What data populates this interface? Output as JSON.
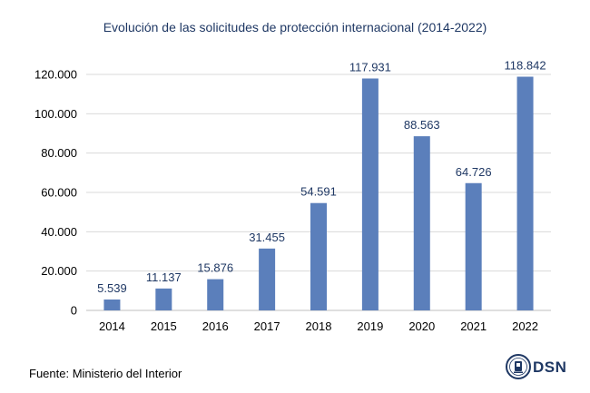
{
  "chart_data": {
    "type": "bar",
    "title": "Evolución de las solicitudes de protección internacional (2014-2022)",
    "categories": [
      "2014",
      "2015",
      "2016",
      "2017",
      "2018",
      "2019",
      "2020",
      "2021",
      "2022"
    ],
    "values": [
      5539,
      11137,
      15876,
      31455,
      54591,
      117931,
      88563,
      64726,
      118842
    ],
    "value_labels": [
      "5.539",
      "11.137",
      "15.876",
      "31.455",
      "54.591",
      "117.931",
      "88.563",
      "64.726",
      "118.842"
    ],
    "yticks": [
      0,
      20000,
      40000,
      60000,
      80000,
      100000,
      120000
    ],
    "ytick_labels": [
      "0",
      "20.000",
      "40.000",
      "60.000",
      "80.000",
      "100.000",
      "120.000"
    ],
    "ylim": [
      0,
      120000
    ],
    "grid": true,
    "legend": "none",
    "bar_color": "#5b7fbb",
    "label_color": "#1f3864"
  },
  "footer": {
    "source": "Fuente: Ministerio del Interior",
    "logo_text": "DSN"
  }
}
